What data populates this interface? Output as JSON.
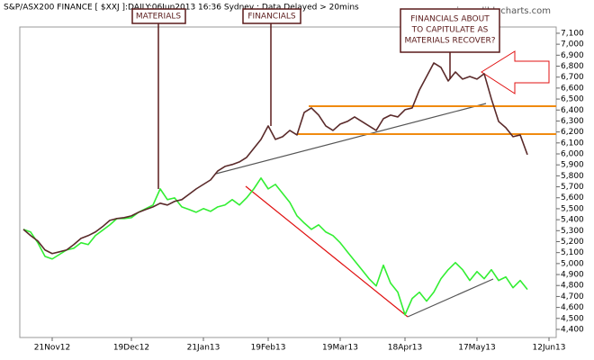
{
  "chart_data": {
    "type": "line",
    "title": "S&P/ASX200 FINANCE [ $XXJ ]:DAILY:06Jun2013 16:36 Sydney : Data Delayed > 20mins",
    "watermark": "www.incrediblecharts.com",
    "annotations": [
      "MATERIALS",
      "FINANCIALS",
      [
        "FINANCIALS ABOUT",
        "TO CAPITULATE AS",
        "MATERIALS RECOVER?"
      ]
    ],
    "categories": [
      null,
      null,
      null,
      null,
      "21Nov12",
      null,
      null,
      null,
      null,
      null,
      null,
      null,
      null,
      null,
      null,
      "19Dec12",
      null,
      null,
      null,
      null,
      null,
      null,
      null,
      null,
      null,
      "21Jan13",
      null,
      null,
      null,
      null,
      null,
      null,
      null,
      null,
      "19Feb13",
      null,
      null,
      null,
      null,
      null,
      null,
      null,
      null,
      null,
      "19Mar13",
      null,
      null,
      null,
      null,
      null,
      null,
      null,
      null,
      "18Apr13",
      null,
      null,
      null,
      null,
      null,
      null,
      null,
      null,
      null,
      "17May13",
      null,
      null,
      null,
      null,
      null,
      null,
      null,
      null,
      null,
      "12Jun13"
    ],
    "series": [
      {
        "color": "#5a2a2a",
        "values": [
          5312,
          5255,
          5206,
          5124,
          5091,
          5107,
          5124,
          5173,
          5230,
          5255,
          5288,
          5337,
          5394,
          5411,
          5419,
          5435,
          5468,
          5493,
          5517,
          5550,
          5534,
          5567,
          5583,
          5632,
          5681,
          5722,
          5763,
          5845,
          5886,
          5903,
          5927,
          5968,
          6050,
          6132,
          6255,
          6132,
          6157,
          6214,
          6173,
          6378,
          6419,
          6354,
          6255,
          6214,
          6272,
          6296,
          6337,
          6296,
          6255,
          6214,
          6321,
          6354,
          6337,
          6403,
          6419,
          6583,
          6706,
          6829,
          6788,
          6665,
          6747,
          6682,
          6706,
          6682,
          6731,
          6501,
          6296,
          6239,
          6157,
          6173,
          5993,
          null,
          null,
          null
        ]
      },
      {
        "color": "#33ee33",
        "values": [
          5312,
          5288,
          5190,
          5066,
          5042,
          5083,
          5124,
          5140,
          5190,
          5173,
          5255,
          5304,
          5353,
          5411,
          5411,
          5419,
          5468,
          5501,
          5534,
          5681,
          5583,
          5599,
          5517,
          5493,
          5468,
          5501,
          5476,
          5517,
          5534,
          5583,
          5534,
          5599,
          5681,
          5780,
          5681,
          5722,
          5640,
          5558,
          5435,
          5370,
          5312,
          5353,
          5288,
          5255,
          5190,
          5107,
          5026,
          4944,
          4862,
          4796,
          4985,
          4821,
          4739,
          4533,
          4682,
          4739,
          4657,
          4739,
          4862,
          4944,
          5009,
          4944,
          4846,
          4927,
          4862,
          4944,
          4846,
          4878,
          4780,
          4846,
          4764,
          null,
          null,
          null
        ]
      }
    ],
    "ylim": [
      4326,
      7157
    ],
    "yticks": [
      {
        "value": 4400,
        "label": "4,400"
      },
      {
        "value": 4500,
        "label": "4,500"
      },
      {
        "value": 4600,
        "label": "4,600"
      },
      {
        "value": 4700,
        "label": "4,700"
      },
      {
        "value": 4800,
        "label": "4,800"
      },
      {
        "value": 4900,
        "label": "4,900"
      },
      {
        "value": 5000,
        "label": "5,000"
      },
      {
        "value": 5100,
        "label": "5,100"
      },
      {
        "value": 5200,
        "label": "5,200"
      },
      {
        "value": 5300,
        "label": "5,300"
      },
      {
        "value": 5400,
        "label": "5,400"
      },
      {
        "value": 5500,
        "label": "5,500"
      },
      {
        "value": 5600,
        "label": "5,600"
      },
      {
        "value": 5700,
        "label": "5,700"
      },
      {
        "value": 5800,
        "label": "5,800"
      },
      {
        "value": 5900,
        "label": "5,900"
      },
      {
        "value": 6000,
        "label": "6,000"
      },
      {
        "value": 6100,
        "label": "6,100"
      },
      {
        "value": 6200,
        "label": "6,200"
      },
      {
        "value": 6300,
        "label": "6,300"
      },
      {
        "value": 6400,
        "label": "6,400"
      },
      {
        "value": 6500,
        "label": "6,500"
      },
      {
        "value": 6600,
        "label": "6,600"
      },
      {
        "value": 6700,
        "label": "6,700"
      },
      {
        "value": 6800,
        "label": "6,800"
      },
      {
        "value": 6900,
        "label": "6,900"
      },
      {
        "value": 7000,
        "label": "7,000"
      },
      {
        "value": 7100,
        "label": "7,100"
      }
    ],
    "grid": false
  }
}
